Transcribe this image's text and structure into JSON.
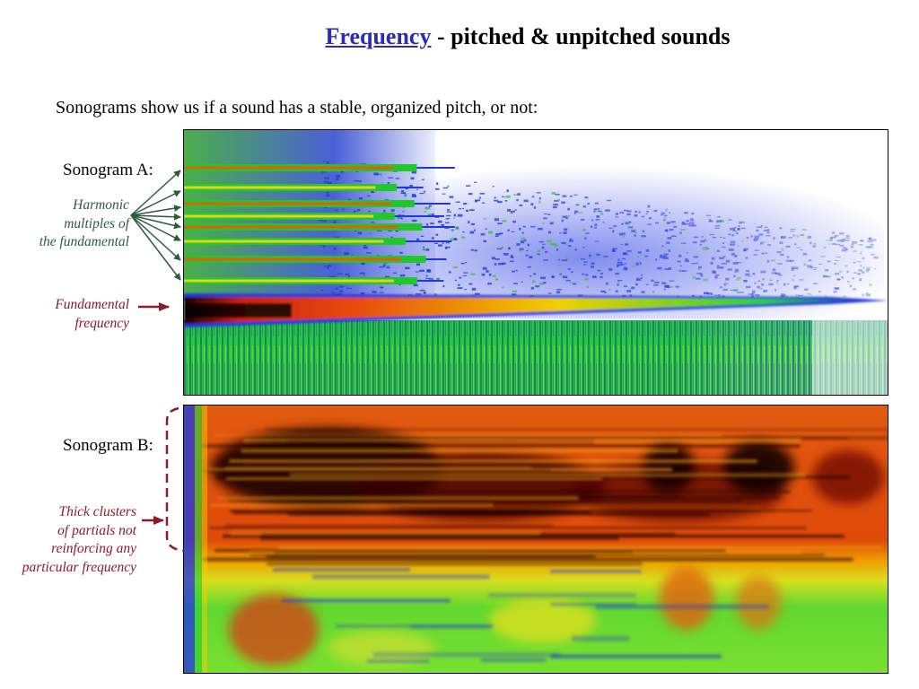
{
  "title": {
    "link_text": "Frequency",
    "rest": " - pitched & unpitched sounds"
  },
  "subtitle": "Sonograms show us if a sound has a stable, organized pitch, or not:",
  "sonogram_a": {
    "label": "Sonogram A:",
    "harmonic_note": [
      "Harmonic",
      "multiples of",
      "the fundamental"
    ],
    "fundamental_note": [
      "Fundamental",
      "frequency"
    ]
  },
  "sonogram_b": {
    "label": "Sonogram B:",
    "cluster_note": [
      "Thick clusters",
      "of partials not",
      "reinforcing any",
      "particular frequency"
    ]
  },
  "colors": {
    "link": "#2b2bb8",
    "harmonic_annotation": "#2d5a3d",
    "fundamental_annotation": "#8b1a2a"
  }
}
